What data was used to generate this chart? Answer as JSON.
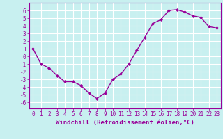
{
  "x": [
    0,
    1,
    2,
    3,
    4,
    5,
    6,
    7,
    8,
    9,
    10,
    11,
    12,
    13,
    14,
    15,
    16,
    17,
    18,
    19,
    20,
    21,
    22,
    23
  ],
  "y": [
    1.0,
    -1.0,
    -1.5,
    -2.5,
    -3.3,
    -3.3,
    -3.8,
    -4.8,
    -5.5,
    -4.8,
    -3.0,
    -2.3,
    -1.0,
    0.8,
    2.5,
    4.3,
    4.8,
    6.0,
    6.1,
    5.8,
    5.3,
    5.1,
    3.9,
    3.7
  ],
  "line_color": "#990099",
  "marker": "D",
  "marker_size": 2.0,
  "linewidth": 1.0,
  "xlabel": "Windchill (Refroidissement éolien,°C)",
  "xlabel_fontsize": 6.5,
  "ylim": [
    -6.8,
    7.0
  ],
  "xlim": [
    -0.5,
    23.5
  ],
  "yticks": [
    -6,
    -5,
    -4,
    -3,
    -2,
    -1,
    0,
    1,
    2,
    3,
    4,
    5,
    6
  ],
  "xticks": [
    0,
    1,
    2,
    3,
    4,
    5,
    6,
    7,
    8,
    9,
    10,
    11,
    12,
    13,
    14,
    15,
    16,
    17,
    18,
    19,
    20,
    21,
    22,
    23
  ],
  "bg_color": "#c8f0f0",
  "grid_color": "#ffffff",
  "tick_fontsize": 5.5,
  "tick_color": "#990099",
  "label_color": "#990099",
  "spine_color": "#990099"
}
